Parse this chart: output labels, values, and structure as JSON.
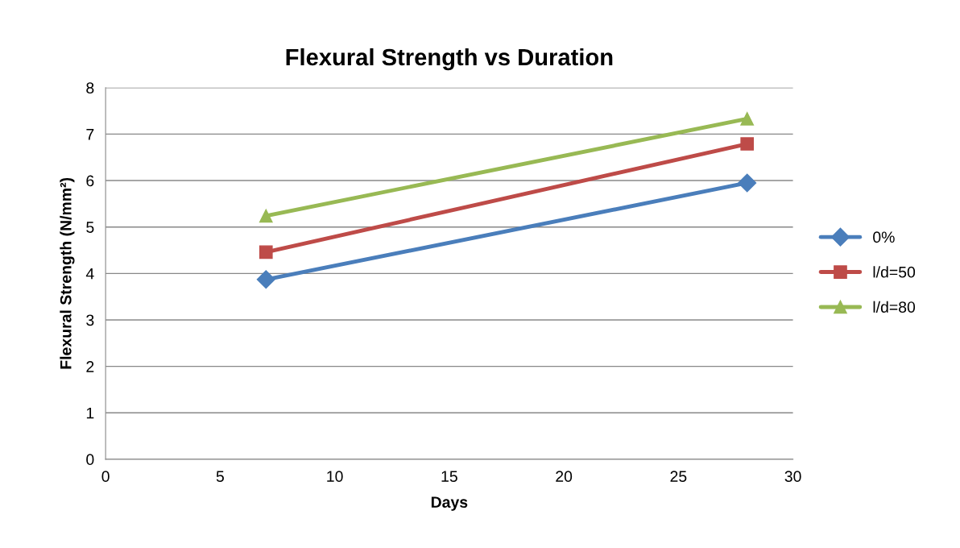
{
  "chart_data": {
    "type": "line",
    "title": "Flexural Strength vs Duration",
    "xlabel": "Days",
    "ylabel": "Flexural Strength (N/mm²)",
    "x": [
      7,
      28
    ],
    "series": [
      {
        "name": "0%",
        "color": "#4a7ebb",
        "values": [
          3.87,
          5.95
        ],
        "marker": "diamond"
      },
      {
        "name": "l/d=50",
        "color": "#be4b48",
        "values": [
          4.46,
          6.79
        ],
        "marker": "square"
      },
      {
        "name": "l/d=80",
        "color": "#98b954",
        "values": [
          5.24,
          7.33
        ],
        "marker": "triangle"
      }
    ],
    "xlim": [
      0,
      30
    ],
    "xticks": [
      0,
      5,
      10,
      15,
      20,
      25,
      30
    ],
    "ylim": [
      0,
      8
    ],
    "yticks": [
      0,
      1,
      2,
      3,
      4,
      5,
      6,
      7,
      8
    ],
    "grid": "y",
    "legend": "right",
    "line_style": "solid"
  }
}
